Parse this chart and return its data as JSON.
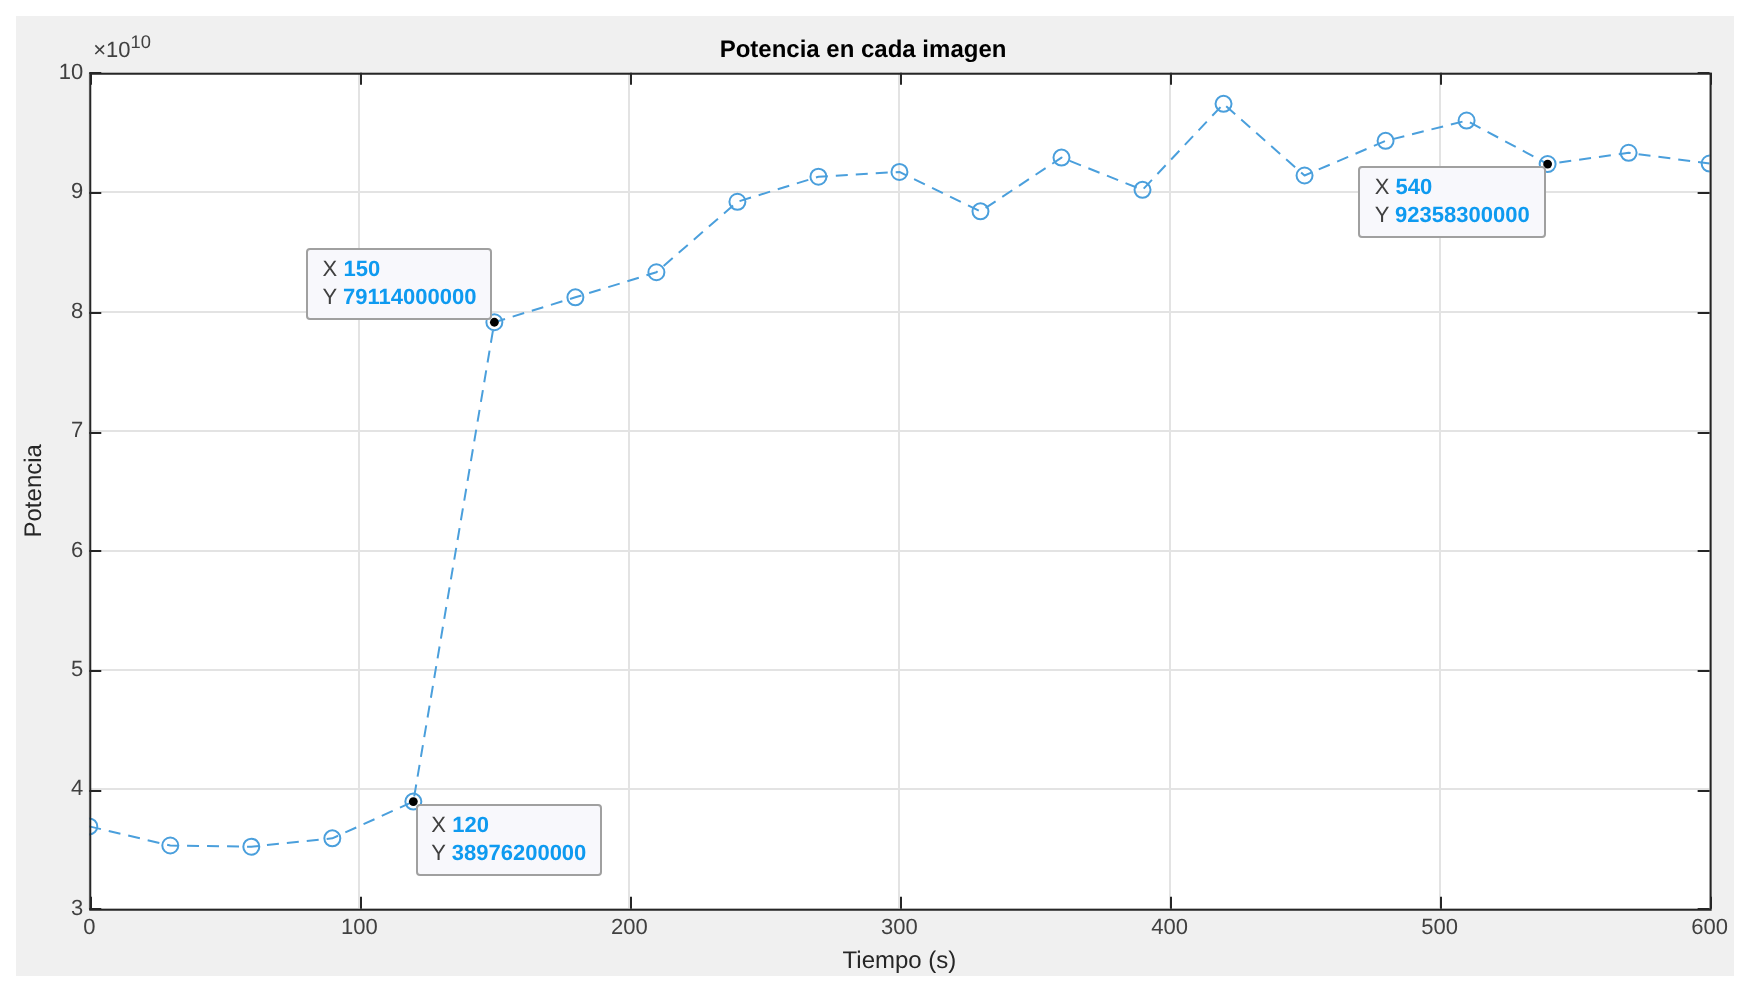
{
  "chart_data": {
    "type": "line",
    "title": "Potencia en cada imagen",
    "xlabel": "Tiempo (s)",
    "ylabel": "Potencia",
    "x": [
      0,
      30,
      60,
      90,
      120,
      150,
      180,
      210,
      240,
      270,
      300,
      330,
      360,
      390,
      420,
      450,
      480,
      510,
      540,
      570,
      600
    ],
    "series": [
      {
        "color": "#4a9fdc",
        "values": [
          3.69,
          3.53,
          3.52,
          3.59,
          3.89762,
          7.9114,
          8.12,
          8.33,
          8.92,
          9.13,
          9.17,
          8.84,
          9.29,
          9.02,
          9.74,
          9.14,
          9.43,
          9.6,
          9.23583,
          9.33,
          9.24
        ]
      }
    ],
    "xlim": [
      0,
      600
    ],
    "xticks": [
      0,
      100,
      200,
      300,
      400,
      500,
      600
    ],
    "ylim": [
      3,
      10
    ],
    "yticks": [
      3,
      4,
      5,
      6,
      7,
      8,
      9,
      10
    ],
    "grid": true,
    "marker": "circle",
    "line_style": "dashed",
    "annotations": [
      "×10$^{10}$",
      {
        "text": "X 150\nY 79114000000",
        "x": 150,
        "y": 7.9114
      },
      {
        "text": "X 120\nY 38976200000",
        "x": 120,
        "y": 3.89762
      },
      {
        "text": "X 540\nY 92358300000",
        "x": 540,
        "y": 9.23583
      }
    ]
  }
}
